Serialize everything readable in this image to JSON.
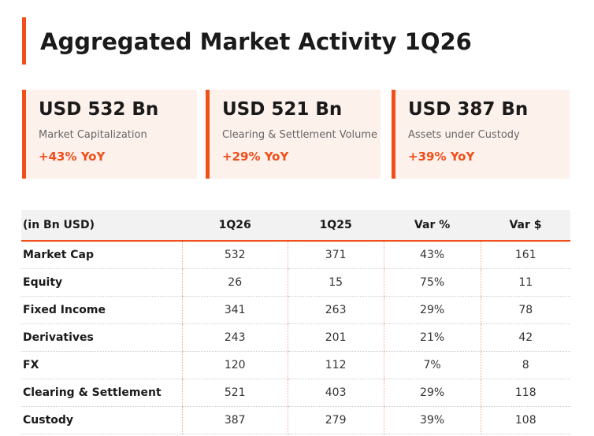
{
  "header": {
    "title": "Aggregated Market Activity 1Q26"
  },
  "cards": [
    {
      "value": "USD 532 Bn",
      "label": "Market Capitalization",
      "change": "+43% YoY"
    },
    {
      "value": "USD 521 Bn",
      "label": "Clearing & Settlement Volume",
      "change": "+29% YoY"
    },
    {
      "value": "USD 387 Bn",
      "label": "Assets under Custody",
      "change": "+39% YoY"
    }
  ],
  "table": {
    "columns": [
      "(in Bn USD)",
      "1Q26",
      "1Q25",
      "Var %",
      "Var $"
    ],
    "rows": [
      [
        "Market Cap",
        532,
        371,
        "43%",
        161
      ],
      [
        "Equity",
        26,
        15,
        "75%",
        11
      ],
      [
        "Fixed Income",
        341,
        263,
        "29%",
        78
      ],
      [
        "Derivatives",
        243,
        201,
        "21%",
        42
      ],
      [
        "FX",
        120,
        112,
        "7%",
        8
      ],
      [
        "Clearing & Settlement",
        521,
        403,
        "29%",
        118
      ],
      [
        "Custody",
        387,
        279,
        "39%",
        108
      ]
    ]
  }
}
